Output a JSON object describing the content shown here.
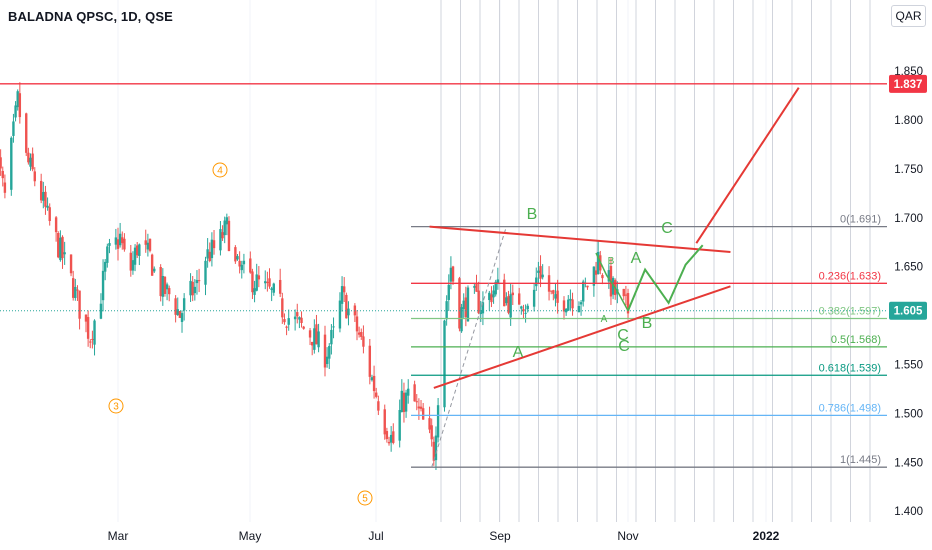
{
  "header": {
    "symbol_title": "BALADNA QPSC, 1D, QSE",
    "currency": "QAR"
  },
  "chart_data": {
    "type": "candlestick",
    "title": "BALADNA QPSC, 1D, QSE",
    "currency": "QAR",
    "x_tick_labels": [
      "Mar",
      "May",
      "Jul",
      "Sep",
      "Nov",
      "2022"
    ],
    "y_ticks": [
      1.4,
      1.45,
      1.5,
      1.55,
      1.6,
      1.65,
      1.7,
      1.75,
      1.8,
      1.85
    ],
    "y_tick_labels": [
      "1.400",
      "1.450",
      "1.500",
      "1.550",
      "1.600",
      "1.650",
      "1.700",
      "1.750",
      "1.800",
      "1.850"
    ],
    "ylim": [
      1.38,
      1.91
    ],
    "grid": "vertical lines only",
    "last_price": {
      "value": 1.605,
      "label": "1.605"
    },
    "resistance_line": {
      "value": 1.837,
      "label": "1.837"
    },
    "fibonacci_levels": [
      {
        "ratio": "0",
        "value": 1.691,
        "label": "0(1.691)",
        "color": "#787b86"
      },
      {
        "ratio": "0.236",
        "value": 1.633,
        "label": "0.236(1.633)",
        "color": "#f23645"
      },
      {
        "ratio": "0.382",
        "value": 1.597,
        "label": "0.382(1.597)",
        "color": "#81c784"
      },
      {
        "ratio": "0.5",
        "value": 1.568,
        "label": "0.5(1.568)",
        "color": "#4caf50"
      },
      {
        "ratio": "0.618",
        "value": 1.539,
        "label": "0.618(1.539)",
        "color": "#089981"
      },
      {
        "ratio": "0.786",
        "value": 1.498,
        "label": "0.786(1.498)",
        "color": "#64b5f6"
      },
      {
        "ratio": "1",
        "value": 1.445,
        "label": "1(1.445)",
        "color": "#787b86"
      }
    ],
    "wave_labels": [
      {
        "text": "4",
        "style": "orange-circle"
      },
      {
        "text": "3",
        "style": "orange-circle"
      },
      {
        "text": "5",
        "style": "orange-circle"
      },
      {
        "text": "B",
        "style": "green"
      },
      {
        "text": "A",
        "style": "green"
      },
      {
        "text": "C",
        "style": "green"
      },
      {
        "text": "B",
        "style": "green-small"
      },
      {
        "text": "A",
        "style": "green-small"
      },
      {
        "text": "C",
        "style": "green"
      },
      {
        "text": "A",
        "style": "green"
      },
      {
        "text": "B",
        "style": "green"
      },
      {
        "text": "C",
        "style": "green"
      }
    ],
    "colors": {
      "up": "#26a69a",
      "down": "#ef5350",
      "trendline": "#e53935",
      "projection": "#4caf50",
      "price_badge": "#26a69a",
      "resistance_badge": "#f23645"
    }
  }
}
